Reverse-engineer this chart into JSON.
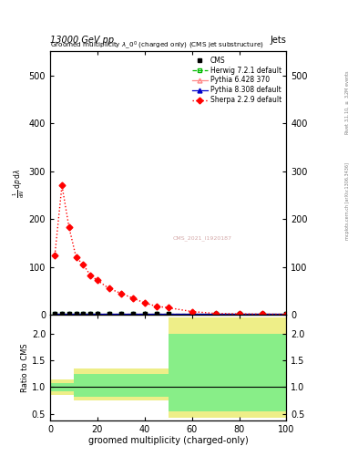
{
  "title_left": "13000 GeV pp",
  "title_right": "Jets",
  "plot_title": "Groomed multiplicity $\\lambda\\_0^0$ (charged only) (CMS jet substructure)",
  "xlabel": "groomed multiplicity (charged-only)",
  "ylabel_ratio": "Ratio to CMS",
  "right_label_top": "Rivet 3.1.10, $\\geq$ 3.2M events",
  "right_label_bottom": "mcplots.cern.ch [arXiv:1306.3436]",
  "watermark": "CMS_2021_I1920187",
  "xlim": [
    0,
    100
  ],
  "ylim_main": [
    0,
    550
  ],
  "ylim_ratio": [
    0.38,
    2.35
  ],
  "yticks_main": [
    0,
    100,
    200,
    300,
    400,
    500
  ],
  "yticks_ratio": [
    0.5,
    1.0,
    1.5,
    2.0
  ],
  "sherpa_x": [
    2,
    5,
    8,
    11,
    14,
    17,
    20,
    25,
    30,
    35,
    40,
    45,
    50,
    60,
    70,
    80,
    90,
    100
  ],
  "sherpa_y": [
    125,
    270,
    183,
    120,
    105,
    83,
    72,
    55,
    45,
    35,
    25,
    18,
    15,
    7,
    3,
    2,
    1.5,
    1
  ],
  "cms_x": [
    2,
    5,
    8,
    11,
    14,
    17,
    20,
    25,
    30,
    35,
    40,
    45,
    50,
    60,
    70,
    80,
    90,
    100
  ],
  "cms_y": [
    2,
    2,
    2,
    2,
    2,
    2,
    2,
    2,
    2,
    2,
    2,
    2,
    2,
    2,
    2,
    2,
    2,
    2
  ],
  "herwig_x": [
    2,
    5,
    8,
    11,
    14,
    17,
    20,
    25,
    30,
    35,
    40,
    45,
    50,
    60,
    70,
    80,
    90,
    100
  ],
  "herwig_y": [
    2,
    2,
    2,
    2,
    2,
    2,
    2,
    2,
    2,
    2,
    2,
    2,
    2,
    2,
    2,
    2,
    2,
    2
  ],
  "pythia6_x": [
    2,
    5,
    8,
    11,
    14,
    17,
    20,
    25,
    30,
    35,
    40,
    45,
    50,
    60,
    70,
    80,
    90,
    100
  ],
  "pythia6_y": [
    2,
    2,
    2,
    2,
    2,
    2,
    2,
    2,
    2,
    2,
    2,
    2,
    2,
    2,
    2,
    2,
    2,
    2
  ],
  "pythia8_x": [
    2,
    5,
    8,
    11,
    14,
    17,
    20,
    25,
    30,
    35,
    40,
    45,
    50,
    60,
    70,
    80,
    90,
    100
  ],
  "pythia8_y": [
    2,
    2,
    2,
    2,
    2,
    2,
    2,
    2,
    2,
    2,
    2,
    2,
    2,
    2,
    2,
    2,
    2,
    2
  ],
  "ratio_yellow_edges": [
    0,
    10,
    50,
    100
  ],
  "ratio_yellow_lo": [
    0.85,
    0.75,
    0.43
  ],
  "ratio_yellow_hi": [
    1.15,
    1.35,
    2.3
  ],
  "ratio_green_edges": [
    0,
    10,
    50,
    100
  ],
  "ratio_green_lo": [
    0.92,
    0.82,
    0.55
  ],
  "ratio_green_hi": [
    1.08,
    1.25,
    2.0
  ],
  "colors": {
    "cms": "black",
    "herwig": "#00bb00",
    "pythia6": "#ff8888",
    "pythia8": "#0000cc",
    "sherpa": "red",
    "green_band": "#88ee88",
    "yellow_band": "#eeee88"
  }
}
